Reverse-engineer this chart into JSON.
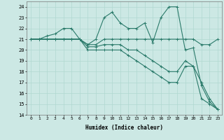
{
  "xlabel": "Humidex (Indice chaleur)",
  "xlim": [
    -0.5,
    23.5
  ],
  "ylim": [
    14,
    24.5
  ],
  "yticks": [
    14,
    15,
    16,
    17,
    18,
    19,
    20,
    21,
    22,
    23,
    24
  ],
  "xticks": [
    0,
    1,
    2,
    3,
    4,
    5,
    6,
    7,
    8,
    9,
    10,
    11,
    12,
    13,
    14,
    15,
    16,
    17,
    18,
    19,
    20,
    21,
    22,
    23
  ],
  "bg_color": "#cce8e4",
  "grid_color": "#b0d8d0",
  "line_color": "#2a7a6a",
  "series": [
    [
      21,
      21,
      21.3,
      21.5,
      22,
      22,
      21,
      20.5,
      21,
      23,
      23.5,
      22.5,
      22,
      22,
      22.5,
      20.7,
      23,
      24,
      24,
      20,
      20.2,
      16.7,
      15.2,
      14.5
    ],
    [
      21,
      21,
      21,
      21,
      21,
      21,
      21,
      20.5,
      20.5,
      21,
      21,
      21,
      21,
      21,
      21,
      21,
      21,
      21,
      21,
      21,
      21,
      20.5,
      20.5,
      21
    ],
    [
      21,
      21,
      21,
      21,
      21,
      21,
      21,
      20.3,
      20.3,
      20.5,
      20.5,
      20.5,
      20,
      20,
      19.5,
      19,
      18.5,
      18,
      18,
      19,
      18.5,
      17,
      15.5,
      14.5
    ],
    [
      21,
      21,
      21,
      21,
      21,
      21,
      21,
      20,
      20,
      20,
      20,
      20,
      19.5,
      19,
      18.5,
      18,
      17.5,
      17,
      17,
      18.5,
      18.5,
      15.5,
      15,
      14.5
    ]
  ]
}
